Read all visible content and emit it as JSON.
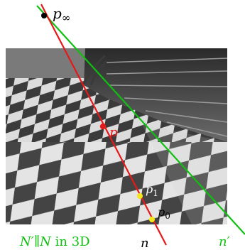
{
  "labels": {
    "p_inf": {
      "base": "p",
      "sub": "∞"
    },
    "p": "p",
    "p1": {
      "base": "p",
      "sub": "1"
    },
    "p0": {
      "base": "p",
      "sub": "0"
    },
    "n": "n",
    "n_prime": "n′",
    "caption": {
      "pre": "N′∥N",
      "mid": " in 3D"
    }
  },
  "colors": {
    "line_n": "#e61919",
    "line_n_prime": "#10c010",
    "point_inf": "#000000",
    "point_p": "#e61919",
    "points_yellow": "#f5e61a",
    "caption": "#10c010"
  },
  "photo_subject": "checkered-floor-with-staircase"
}
